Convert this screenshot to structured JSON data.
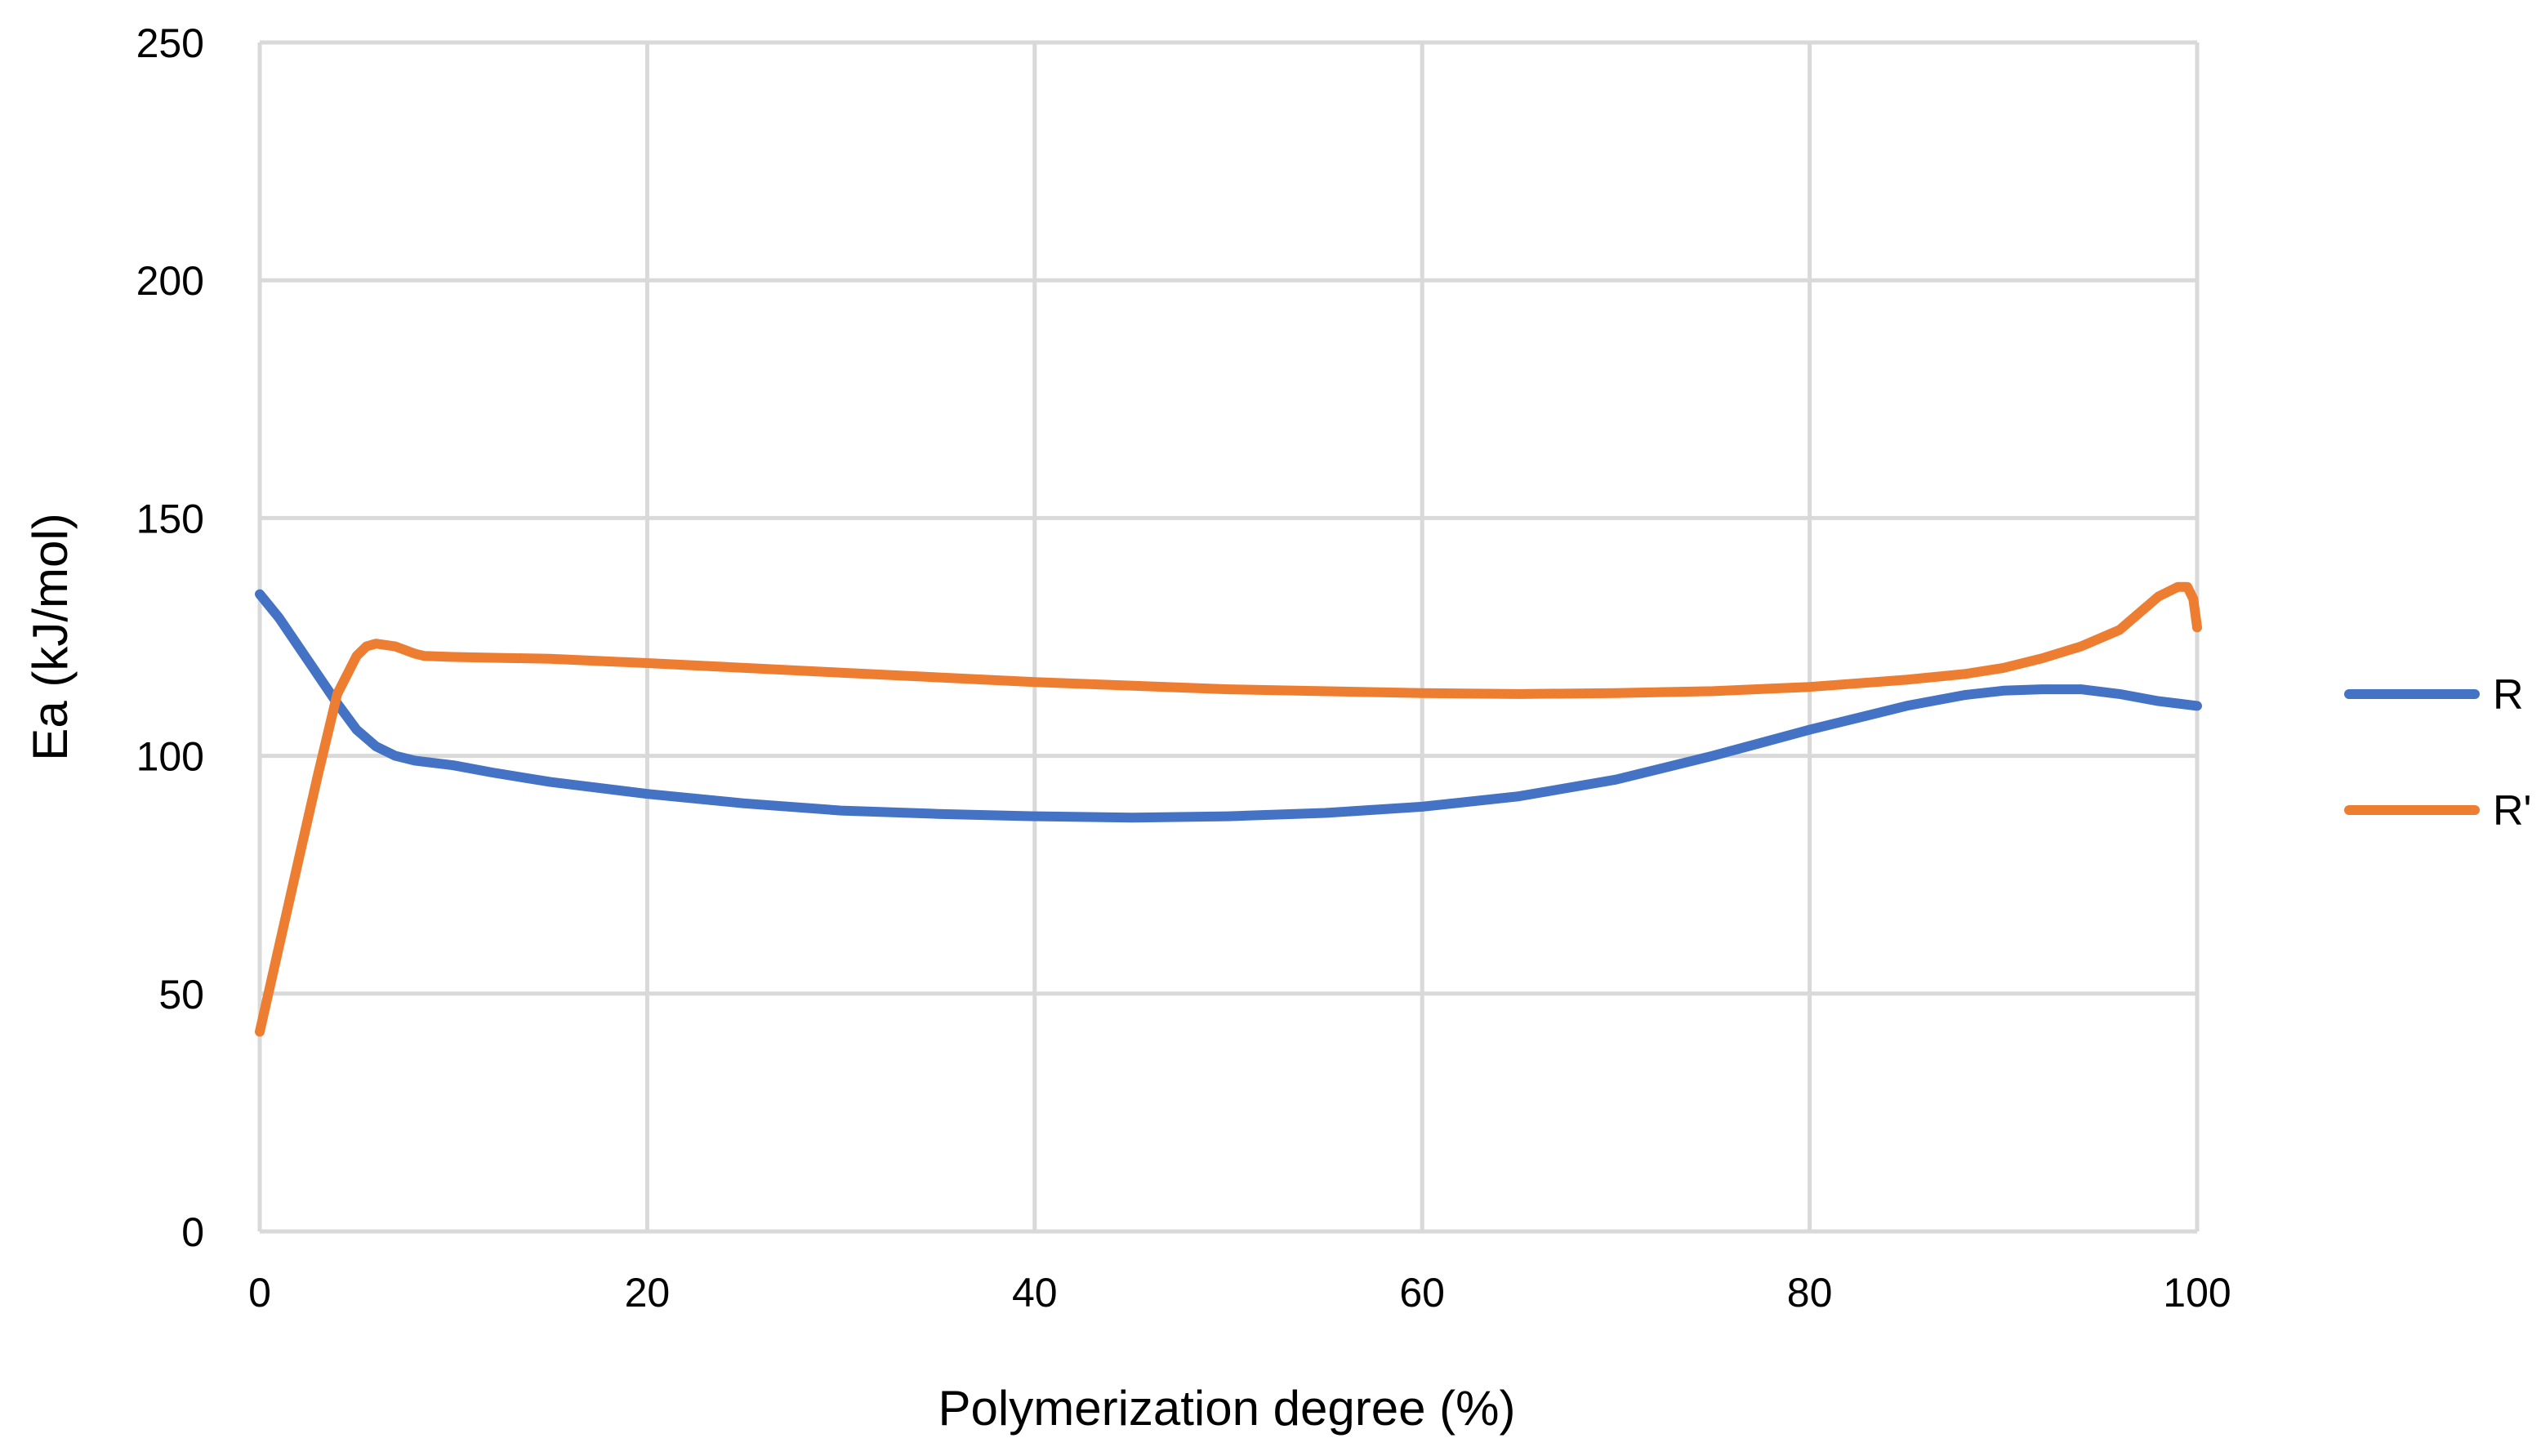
{
  "chart_data": {
    "type": "line",
    "title": "",
    "xlabel": "Polymerization degree (%)",
    "ylabel": "Ea (kJ/mol)",
    "xlim": [
      0,
      100
    ],
    "ylim": [
      0,
      250
    ],
    "x_ticks": [
      0,
      20,
      40,
      60,
      80,
      100
    ],
    "y_ticks": [
      0,
      50,
      100,
      150,
      200,
      250
    ],
    "grid": true,
    "legend_position": "right",
    "series": [
      {
        "name": "R",
        "color": "#4472C4",
        "x": [
          0,
          1,
          2,
          3,
          4,
          5,
          6,
          7,
          8,
          10,
          12,
          15,
          20,
          25,
          30,
          35,
          40,
          45,
          50,
          55,
          60,
          65,
          70,
          75,
          80,
          85,
          88,
          90,
          92,
          94,
          96,
          98,
          100
        ],
        "y": [
          134,
          129,
          123,
          117,
          111,
          105.5,
          102,
          100,
          99,
          98,
          96.5,
          94.5,
          92,
          90,
          88.5,
          87.8,
          87.3,
          87,
          87.3,
          88,
          89.3,
          91.5,
          95,
          100,
          105.5,
          110.5,
          112.8,
          113.7,
          114,
          114,
          113,
          111.5,
          110.5
        ]
      },
      {
        "name": "R'",
        "color": "#ED7D31",
        "x": [
          0,
          1,
          2,
          3,
          4,
          5,
          5.5,
          6,
          7,
          8,
          8.5,
          10,
          15,
          20,
          30,
          40,
          50,
          60,
          65,
          70,
          75,
          80,
          85,
          88,
          90,
          92,
          94,
          96,
          97,
          98,
          99,
          99.5,
          99.8,
          100
        ],
        "y": [
          42,
          60,
          78,
          96,
          113,
          121,
          123,
          123.6,
          123,
          121.5,
          121,
          120.8,
          120.4,
          119.5,
          117.5,
          115.5,
          114,
          113.2,
          113,
          113.2,
          113.6,
          114.5,
          116,
          117.2,
          118.5,
          120.5,
          123,
          126.5,
          130,
          133.5,
          135.5,
          135.5,
          133,
          127
        ]
      }
    ]
  }
}
